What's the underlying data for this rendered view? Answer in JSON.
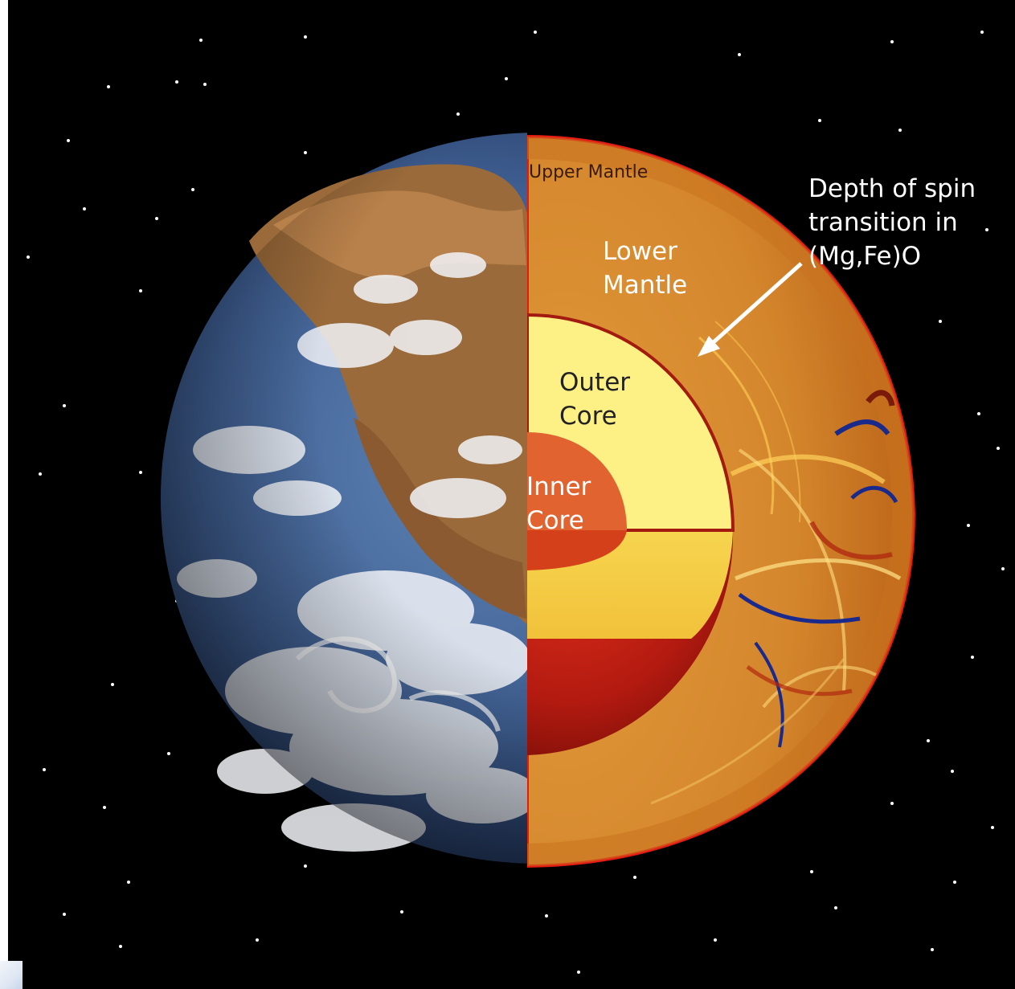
{
  "colors": {
    "space": "#000000",
    "upper_mantle": "#cc7a22",
    "lower_mantle": "#d9892e",
    "outer_core": "#fdf084",
    "inner_core": "#e06330",
    "crust_line": "#e21c12",
    "label_text": "#ffffff",
    "upper_mantle_label_text": "#3a1a08",
    "arrow": "#ffffff"
  },
  "labels": {
    "upper_mantle": "Upper Mantle",
    "lower_mantle_line1": "Lower",
    "lower_mantle_line2": "Mantle",
    "outer_core_line1": "Outer",
    "outer_core_line2": "Core",
    "inner_core_line1": "Inner",
    "inner_core_line2": "Core",
    "annotation_line1": "Depth of spin",
    "annotation_line2": "transition in",
    "annotation_line3": "(Mg,Fe)O"
  },
  "icons": {
    "earth": "earth-globe-photo-icon",
    "arrow": "arrow-pointer-icon"
  }
}
